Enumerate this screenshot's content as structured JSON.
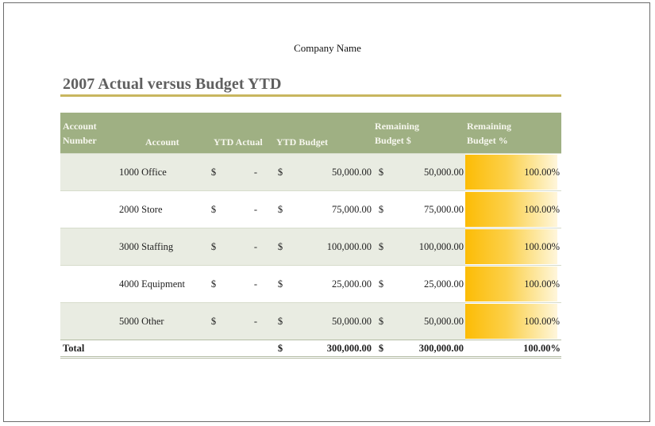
{
  "company": "Company Name",
  "title": "2007 Actual versus Budget YTD",
  "colors": {
    "header_bg": "#9fb083",
    "title_rule": "#c8b65f",
    "bar_start": "#fcbc05"
  },
  "headers": {
    "account_number_1": "Account",
    "account_number_2": "Number",
    "account": "Account",
    "ytd_actual": "YTD Actual",
    "ytd_budget": "YTD Budget",
    "remaining_budget_1": "Remaining",
    "remaining_budget_2": "Budget $",
    "remaining_pct_1": "Remaining",
    "remaining_pct_2": "Budget %"
  },
  "rows": [
    {
      "account": "1000 Office",
      "actual_cur": "$",
      "actual": "-",
      "budget_cur": "$",
      "budget": "50,000.00",
      "remaining_cur": "$",
      "remaining": "50,000.00",
      "pct": "100.00%",
      "pct_value": 1.0
    },
    {
      "account": "2000 Store",
      "actual_cur": "$",
      "actual": "-",
      "budget_cur": "$",
      "budget": "75,000.00",
      "remaining_cur": "$",
      "remaining": "75,000.00",
      "pct": "100.00%",
      "pct_value": 1.0
    },
    {
      "account": "3000 Staffing",
      "actual_cur": "$",
      "actual": "-",
      "budget_cur": "$",
      "budget": "100,000.00",
      "remaining_cur": "$",
      "remaining": "100,000.00",
      "pct": "100.00%",
      "pct_value": 1.0
    },
    {
      "account": "4000 Equipment",
      "actual_cur": "$",
      "actual": "-",
      "budget_cur": "$",
      "budget": "25,000.00",
      "remaining_cur": "$",
      "remaining": "25,000.00",
      "pct": "100.00%",
      "pct_value": 1.0
    },
    {
      "account": "5000 Other",
      "actual_cur": "$",
      "actual": "-",
      "budget_cur": "$",
      "budget": "50,000.00",
      "remaining_cur": "$",
      "remaining": "50,000.00",
      "pct": "100.00%",
      "pct_value": 1.0
    }
  ],
  "total": {
    "label": "Total",
    "budget_cur": "$",
    "budget": "300,000.00",
    "remaining_cur": "$",
    "remaining": "300,000.00",
    "pct": "100.00%"
  }
}
